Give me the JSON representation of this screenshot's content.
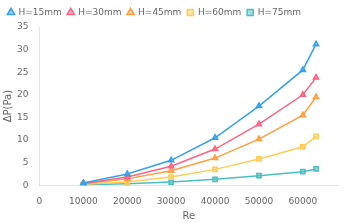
{
  "chart_data": {
    "type": "line",
    "xlabel": "Re",
    "ylabel": "ΔP(Pa)",
    "x": [
      10000,
      20000,
      30000,
      40000,
      50000,
      60000,
      63000
    ],
    "series": [
      {
        "name": "H=15mm",
        "marker": "triangle",
        "values": [
          0.5,
          2.5,
          5.5,
          10.5,
          17.5,
          25.5,
          31.2
        ]
      },
      {
        "name": "H=30mm",
        "marker": "triangle",
        "values": [
          0.4,
          1.8,
          4.2,
          8.0,
          13.5,
          20.0,
          23.8
        ]
      },
      {
        "name": "H=45mm",
        "marker": "triangle",
        "values": [
          0.3,
          1.4,
          3.2,
          6.0,
          10.2,
          15.5,
          19.5
        ]
      },
      {
        "name": "H=60mm",
        "marker": "square",
        "values": [
          0.2,
          0.7,
          1.8,
          3.5,
          5.8,
          8.5,
          10.8
        ]
      },
      {
        "name": "H=75mm",
        "marker": "square",
        "values": [
          0.1,
          0.3,
          0.7,
          1.3,
          2.1,
          3.0,
          3.6
        ]
      }
    ],
    "xlim": [
      0,
      68000
    ],
    "xticks": [
      0,
      10000,
      20000,
      30000,
      40000,
      50000,
      60000
    ],
    "ylim": [
      0,
      35
    ],
    "yticks": [
      0,
      5,
      10,
      15,
      20,
      25,
      30,
      35
    ],
    "grid": false,
    "legend": "upper left"
  }
}
